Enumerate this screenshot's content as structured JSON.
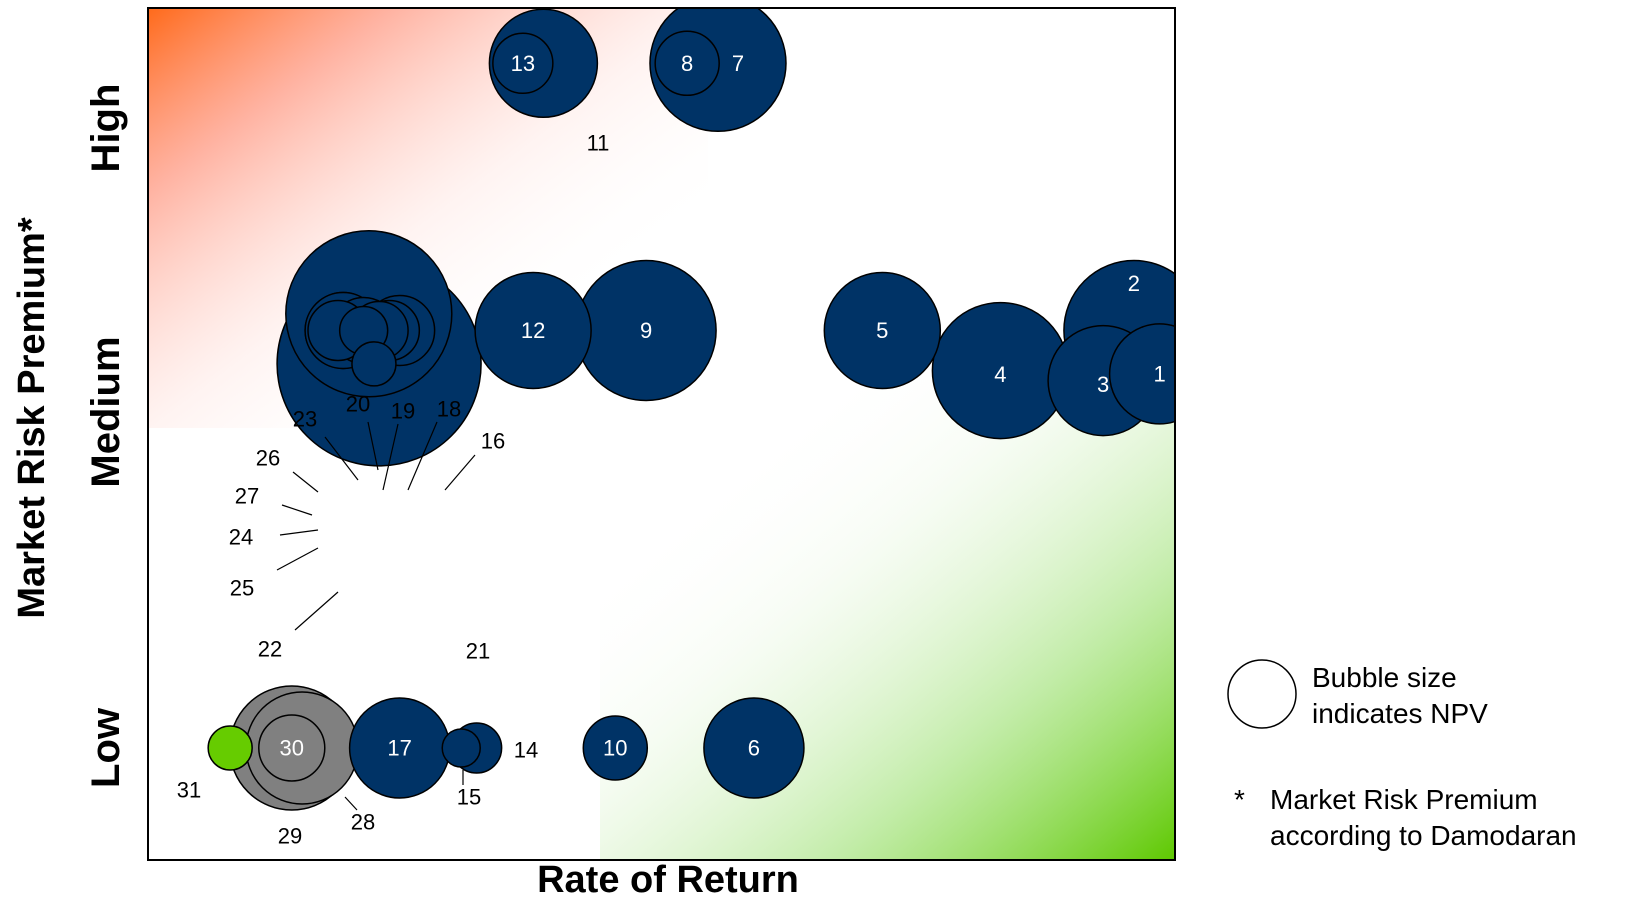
{
  "chart_data": {
    "type": "scatter",
    "subtype": "bubble",
    "xlabel": "Rate of Return",
    "ylabel": "Market Risk Premium*",
    "y_categories": [
      "Low",
      "Medium",
      "High"
    ],
    "bubble_size_meaning": "NPV",
    "colors": {
      "default": "#003366",
      "grey": "#808080",
      "green": "#66cc00",
      "outline": "#000000"
    },
    "points": [
      {
        "label": "1",
        "x": 0.985,
        "y": 1.12,
        "size": 50,
        "color": "#003366"
      },
      {
        "label": "2",
        "x": 0.96,
        "y": 1.25,
        "size": 70,
        "color": "#003366"
      },
      {
        "label": "3",
        "x": 0.93,
        "y": 1.1,
        "size": 55,
        "color": "#003366"
      },
      {
        "label": "4",
        "x": 0.83,
        "y": 1.13,
        "size": 68,
        "color": "#003366"
      },
      {
        "label": "5",
        "x": 0.715,
        "y": 1.25,
        "size": 58,
        "color": "#003366"
      },
      {
        "label": "6",
        "x": 0.59,
        "y": 0.0,
        "size": 50,
        "color": "#003366"
      },
      {
        "label": "7",
        "x": 0.555,
        "y": 2.05,
        "size": 68,
        "color": "#003366"
      },
      {
        "label": "8",
        "x": 0.525,
        "y": 2.05,
        "size": 32,
        "color": "#003366"
      },
      {
        "label": "9",
        "x": 0.485,
        "y": 1.25,
        "size": 70,
        "color": "#003366"
      },
      {
        "label": "10",
        "x": 0.455,
        "y": 0.0,
        "size": 32,
        "color": "#003366"
      },
      {
        "label": "11",
        "x": 0.385,
        "y": 2.05,
        "size": 54,
        "color": "#003366"
      },
      {
        "label": "12",
        "x": 0.375,
        "y": 1.25,
        "size": 58,
        "color": "#003366"
      },
      {
        "label": "13",
        "x": 0.365,
        "y": 2.05,
        "size": 30,
        "color": "#003366"
      },
      {
        "label": "14",
        "x": 0.32,
        "y": 0.0,
        "size": 25,
        "color": "#003366"
      },
      {
        "label": "15",
        "x": 0.305,
        "y": 0.0,
        "size": 19,
        "color": "#003366"
      },
      {
        "label": "16",
        "x": 0.245,
        "y": 1.25,
        "size": 35,
        "color": "#003366"
      },
      {
        "label": "17",
        "x": 0.245,
        "y": 0.0,
        "size": 50,
        "color": "#003366"
      },
      {
        "label": "18",
        "x": 0.235,
        "y": 1.25,
        "size": 30,
        "color": "#003366"
      },
      {
        "label": "19",
        "x": 0.225,
        "y": 1.25,
        "size": 29,
        "color": "#003366"
      },
      {
        "label": "20",
        "x": 0.21,
        "y": 1.25,
        "size": 33,
        "color": "#003366"
      },
      {
        "label": "21",
        "x": 0.225,
        "y": 1.15,
        "size": 102,
        "color": "#003366"
      },
      {
        "label": "22",
        "x": 0.215,
        "y": 1.3,
        "size": 83,
        "color": "#003366"
      },
      {
        "label": "23",
        "x": 0.19,
        "y": 1.25,
        "size": 38,
        "color": "#003366"
      },
      {
        "label": "24",
        "x": 0.185,
        "y": 1.25,
        "size": 30,
        "color": "#003366"
      },
      {
        "label": "25",
        "x": 0.22,
        "y": 1.15,
        "size": 22,
        "color": "#003366"
      },
      {
        "label": "26",
        "x": 0.19,
        "y": 1.25,
        "size": 38,
        "color": "#003366"
      },
      {
        "label": "27",
        "x": 0.21,
        "y": 1.25,
        "size": 24,
        "color": "#003366"
      },
      {
        "label": "28",
        "x": 0.15,
        "y": 0.0,
        "size": 56,
        "color": "#808080"
      },
      {
        "label": "29",
        "x": 0.14,
        "y": 0.0,
        "size": 62,
        "color": "#808080"
      },
      {
        "label": "30",
        "x": 0.14,
        "y": 0.0,
        "size": 33,
        "color": "#808080"
      },
      {
        "label": "31",
        "x": 0.08,
        "y": 0.0,
        "size": 22,
        "color": "#66cc00"
      }
    ]
  },
  "legend": {
    "bubble_text_line1": "Bubble size",
    "bubble_text_line2": "indicates NPV",
    "footnote_mark": "*",
    "footnote_line1": "Market Risk Premium",
    "footnote_line2": "according to Damodaran"
  }
}
